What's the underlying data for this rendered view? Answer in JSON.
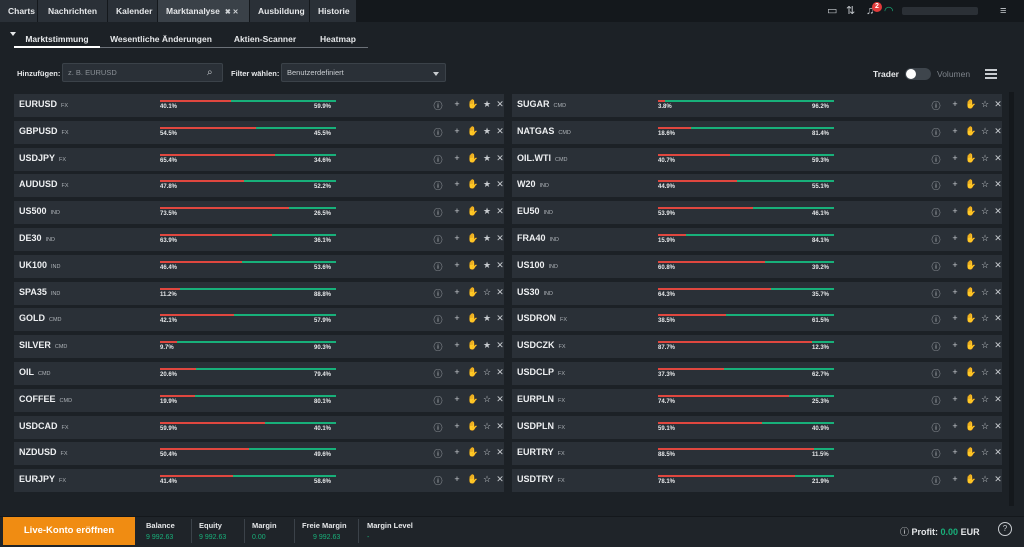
{
  "topbar": {
    "tabs": [
      {
        "label": "Charts",
        "caret": true
      },
      {
        "label": "Nachrichten"
      },
      {
        "label": "Kalender"
      },
      {
        "label": "Marktanalyse",
        "active": true,
        "extra": "✖ ✕"
      },
      {
        "label": "Ausbildung"
      },
      {
        "label": "Historie"
      }
    ],
    "notification_count": "2"
  },
  "subtabs": [
    "Marktstimmung",
    "Wesentliche Änderungen",
    "Aktien-Scanner",
    "Heatmap"
  ],
  "filter": {
    "add_label": "Hinzufügen:",
    "search_placeholder": "z. B. EURUSD",
    "filter_label": "Filter wählen:",
    "filter_value": "Benutzerdefiniert",
    "trader_label": "Trader",
    "volume_label": "Volumen"
  },
  "colors": {
    "sell": "#e0473f",
    "buy": "#18b07a",
    "accent": "#f08c12"
  },
  "icons": [
    "info-icon",
    "plus-icon",
    "chart-hand-icon",
    "star-icon",
    "close-icon"
  ],
  "left_rows": [
    {
      "symbol": "EURUSD",
      "cat": "FX",
      "sell": "40.1%",
      "buy": "59.9%",
      "sell_frac": 0.401,
      "fav": true
    },
    {
      "symbol": "GBPUSD",
      "cat": "FX",
      "sell": "54.5%",
      "buy": "45.5%",
      "sell_frac": 0.545,
      "fav": true
    },
    {
      "symbol": "USDJPY",
      "cat": "FX",
      "sell": "65.4%",
      "buy": "34.6%",
      "sell_frac": 0.654,
      "fav": true
    },
    {
      "symbol": "AUDUSD",
      "cat": "FX",
      "sell": "47.8%",
      "buy": "52.2%",
      "sell_frac": 0.478,
      "fav": true
    },
    {
      "symbol": "US500",
      "cat": "IND",
      "sell": "73.5%",
      "buy": "26.5%",
      "sell_frac": 0.735,
      "fav": true
    },
    {
      "symbol": "DE30",
      "cat": "IND",
      "sell": "63.9%",
      "buy": "36.1%",
      "sell_frac": 0.639,
      "fav": true
    },
    {
      "symbol": "UK100",
      "cat": "IND",
      "sell": "46.4%",
      "buy": "53.6%",
      "sell_frac": 0.464,
      "fav": true
    },
    {
      "symbol": "SPA35",
      "cat": "IND",
      "sell": "11.2%",
      "buy": "88.8%",
      "sell_frac": 0.112,
      "fav": false
    },
    {
      "symbol": "GOLD",
      "cat": "CMD",
      "sell": "42.1%",
      "buy": "57.9%",
      "sell_frac": 0.421,
      "fav": true
    },
    {
      "symbol": "SILVER",
      "cat": "CMD",
      "sell": "9.7%",
      "buy": "90.3%",
      "sell_frac": 0.097,
      "fav": true
    },
    {
      "symbol": "OIL",
      "cat": "CMD",
      "sell": "20.6%",
      "buy": "79.4%",
      "sell_frac": 0.206,
      "fav": false
    },
    {
      "symbol": "COFFEE",
      "cat": "CMD",
      "sell": "19.9%",
      "buy": "80.1%",
      "sell_frac": 0.199,
      "fav": false
    },
    {
      "symbol": "USDCAD",
      "cat": "FX",
      "sell": "59.9%",
      "buy": "40.1%",
      "sell_frac": 0.599,
      "fav": false
    },
    {
      "symbol": "NZDUSD",
      "cat": "FX",
      "sell": "50.4%",
      "buy": "49.6%",
      "sell_frac": 0.504,
      "fav": false
    },
    {
      "symbol": "EURJPY",
      "cat": "FX",
      "sell": "41.4%",
      "buy": "58.6%",
      "sell_frac": 0.414,
      "fav": false
    }
  ],
  "right_rows": [
    {
      "symbol": "SUGAR",
      "cat": "CMD",
      "sell": "3.8%",
      "buy": "96.2%",
      "sell_frac": 0.038,
      "fav": false
    },
    {
      "symbol": "NATGAS",
      "cat": "CMD",
      "sell": "18.6%",
      "buy": "81.4%",
      "sell_frac": 0.186,
      "fav": false
    },
    {
      "symbol": "OIL.WTI",
      "cat": "CMD",
      "sell": "40.7%",
      "buy": "59.3%",
      "sell_frac": 0.407,
      "fav": false
    },
    {
      "symbol": "W20",
      "cat": "IND",
      "sell": "44.9%",
      "buy": "55.1%",
      "sell_frac": 0.449,
      "fav": false
    },
    {
      "symbol": "EU50",
      "cat": "IND",
      "sell": "53.9%",
      "buy": "46.1%",
      "sell_frac": 0.539,
      "fav": false
    },
    {
      "symbol": "FRA40",
      "cat": "IND",
      "sell": "15.9%",
      "buy": "84.1%",
      "sell_frac": 0.159,
      "fav": false
    },
    {
      "symbol": "US100",
      "cat": "IND",
      "sell": "60.8%",
      "buy": "39.2%",
      "sell_frac": 0.608,
      "fav": false
    },
    {
      "symbol": "US30",
      "cat": "IND",
      "sell": "64.3%",
      "buy": "35.7%",
      "sell_frac": 0.643,
      "fav": false
    },
    {
      "symbol": "USDRON",
      "cat": "FX",
      "sell": "38.5%",
      "buy": "61.5%",
      "sell_frac": 0.385,
      "fav": false
    },
    {
      "symbol": "USDCZK",
      "cat": "FX",
      "sell": "87.7%",
      "buy": "12.3%",
      "sell_frac": 0.877,
      "fav": false
    },
    {
      "symbol": "USDCLP",
      "cat": "FX",
      "sell": "37.3%",
      "buy": "62.7%",
      "sell_frac": 0.373,
      "fav": false
    },
    {
      "symbol": "EURPLN",
      "cat": "FX",
      "sell": "74.7%",
      "buy": "25.3%",
      "sell_frac": 0.747,
      "fav": false
    },
    {
      "symbol": "USDPLN",
      "cat": "FX",
      "sell": "59.1%",
      "buy": "40.9%",
      "sell_frac": 0.591,
      "fav": false
    },
    {
      "symbol": "EURTRY",
      "cat": "FX",
      "sell": "88.5%",
      "buy": "11.5%",
      "sell_frac": 0.885,
      "fav": false
    },
    {
      "symbol": "USDTRY",
      "cat": "FX",
      "sell": "78.1%",
      "buy": "21.9%",
      "sell_frac": 0.781,
      "fav": false
    }
  ],
  "footer": {
    "live_button": "Live-Konto eröffnen",
    "balance_label": "Balance",
    "balance_value": "9 992.63",
    "equity_label": "Equity",
    "equity_value": "9 992.63",
    "margin_label": "Margin",
    "margin_value": "0.00",
    "free_margin_label": "Freie Margin",
    "free_margin_value": "9 992.63",
    "margin_level_label": "Margin Level",
    "margin_level_value": "-",
    "profit_label": "Profit:",
    "profit_value": "0.00",
    "profit_currency": "EUR",
    "help": "?"
  }
}
